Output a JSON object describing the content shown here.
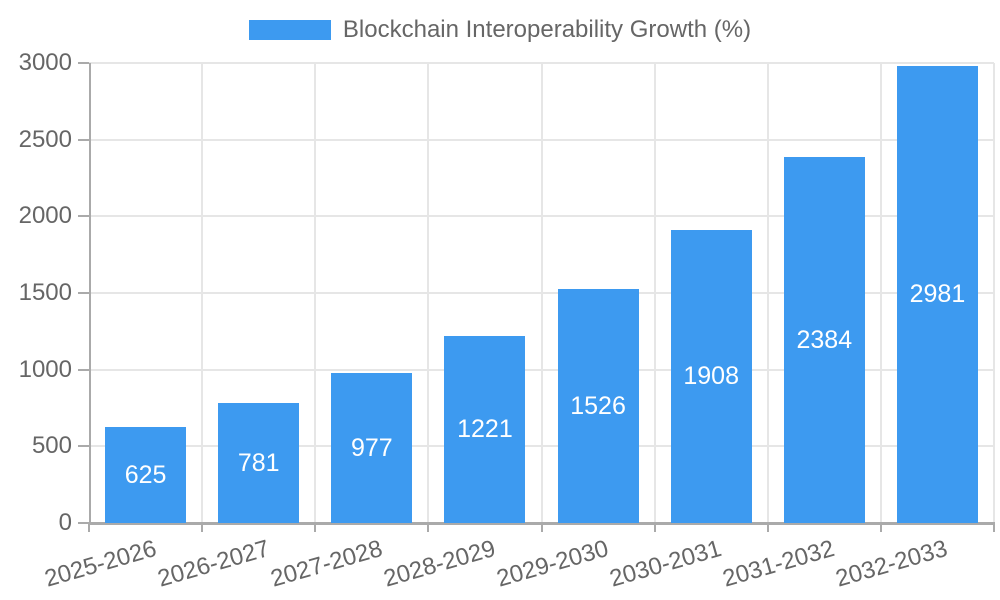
{
  "legend": {
    "label": "Blockchain Interoperability Growth (%)",
    "swatch_color": "#3d9af0"
  },
  "chart_data": {
    "type": "bar",
    "title": "Blockchain Interoperability Growth (%)",
    "categories": [
      "2025-2026",
      "2026-2027",
      "2027-2028",
      "2028-2029",
      "2029-2030",
      "2030-2031",
      "2031-2032",
      "2032-2033"
    ],
    "values": [
      625,
      781,
      977,
      1221,
      1526,
      1908,
      2384,
      2981
    ],
    "xlabel": "",
    "ylabel": "",
    "ylim": [
      0,
      3000
    ],
    "yticks": [
      0,
      500,
      1000,
      1500,
      2000,
      2500,
      3000
    ],
    "grid": true,
    "legend_position": "top-center",
    "value_labels_shown": true,
    "x_label_rotation_deg": -16,
    "colors": {
      "bar": "#3d9af0",
      "value_label": "#ffffff",
      "axis_text": "#666666",
      "gridline": "#e6e6e6",
      "axis_line": "#aaaaaa",
      "background": "#ffffff"
    }
  }
}
